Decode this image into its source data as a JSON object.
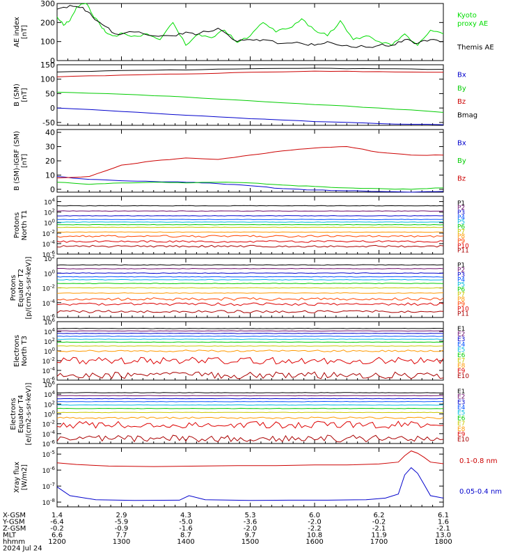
{
  "chart_data": {
    "type": "line",
    "time": {
      "label": "hhmm",
      "date": "2024 Jul 24",
      "ticks": [
        "1200",
        "1300",
        "1400",
        "1500",
        "1600",
        "1700",
        "1800"
      ],
      "xlim": [
        0,
        6
      ]
    },
    "ephemeris": [
      {
        "label": "X-GSM",
        "values": [
          "1.4",
          "2.9",
          "4.3",
          "5.3",
          "6.0",
          "6.2",
          "6.1"
        ]
      },
      {
        "label": "Y-GSM",
        "values": [
          "-6.4",
          "-5.9",
          "-5.0",
          "-3.6",
          "-2.0",
          "-0.2",
          "1.6"
        ]
      },
      {
        "label": "Z-GSM",
        "values": [
          "-0.2",
          "-0.9",
          "-1.6",
          "-2.0",
          "-2.2",
          "-2.1",
          "-2.1"
        ]
      },
      {
        "label": "MLT",
        "values": [
          "6.6",
          "7.7",
          "8.7",
          "9.7",
          "10.8",
          "11.9",
          "13.0"
        ]
      }
    ],
    "panels": [
      {
        "id": "ae",
        "ylabel": "AE index\n[nT]",
        "ylim": [
          0,
          300
        ],
        "yticks": [
          "0",
          "100",
          "200",
          "300"
        ],
        "series": [
          {
            "name": "Kyoto proxy AE",
            "color": "#00dd00",
            "x": [
              0,
              0.1,
              0.2,
              0.3,
              0.45,
              0.55,
              0.65,
              0.75,
              0.9,
              1.0,
              1.2,
              1.4,
              1.6,
              1.8,
              2.0,
              2.2,
              2.4,
              2.6,
              2.8,
              3.0,
              3.2,
              3.4,
              3.6,
              3.8,
              4.0,
              4.2,
              4.4,
              4.6,
              4.8,
              5.0,
              5.2,
              5.4,
              5.6,
              5.8,
              6.0
            ],
            "y": [
              230,
              185,
              210,
              280,
              300,
              240,
              200,
              150,
              130,
              145,
              130,
              140,
              110,
              200,
              80,
              140,
              120,
              160,
              95,
              130,
              200,
              150,
              170,
              220,
              160,
              130,
              210,
              110,
              130,
              100,
              80,
              140,
              80,
              160,
              140
            ]
          },
          {
            "name": "Themis AE",
            "color": "#000000",
            "x": [
              0,
              0.2,
              0.4,
              0.55,
              0.7,
              0.9,
              1.2,
              1.5,
              1.8,
              2.0,
              2.2,
              2.5,
              2.8,
              3.0,
              3.2,
              3.5,
              3.8,
              4.0,
              4.2,
              4.5,
              4.8,
              5.0,
              5.2,
              5.4,
              5.6,
              5.8,
              6.0
            ],
            "y": [
              270,
              290,
              280,
              230,
              190,
              140,
              150,
              130,
              130,
              150,
              140,
              170,
              100,
              110,
              110,
              90,
              90,
              80,
              100,
              80,
              70,
              80,
              80,
              110,
              90,
              110,
              100
            ]
          }
        ]
      },
      {
        "id": "bsm",
        "ylabel": "B (SM)\n[nT]",
        "ylim": [
          -60,
          150
        ],
        "yticks": [
          "-50",
          "0",
          "50",
          "100",
          "150"
        ],
        "series": [
          {
            "name": "Bx",
            "color": "#0000cc",
            "x": [
              0,
              1,
              2,
              3,
              4,
              5,
              6
            ],
            "y": [
              0,
              -12,
              -25,
              -37,
              -47,
              -54,
              -58
            ]
          },
          {
            "name": "By",
            "color": "#00cc00",
            "x": [
              0,
              1,
              2,
              3,
              4,
              5,
              6
            ],
            "y": [
              55,
              48,
              38,
              25,
              12,
              0,
              -15
            ]
          },
          {
            "name": "Bz",
            "color": "#cc0000",
            "x": [
              0,
              1,
              2,
              3,
              4,
              5,
              6
            ],
            "y": [
              108,
              114,
              118,
              124,
              128,
              126,
              124
            ]
          },
          {
            "name": "Bmag",
            "color": "#000000",
            "x": [
              0,
              1,
              2,
              3,
              4,
              5,
              6
            ],
            "y": [
              125,
              130,
              132,
              136,
              138,
              136,
              134
            ]
          }
        ]
      },
      {
        "id": "bigrf",
        "ylabel": "B (SM)-IGRF (SM)\n[nT]",
        "ylim": [
          -2,
          42
        ],
        "yticks": [
          "0",
          "10",
          "20",
          "30",
          "40"
        ],
        "series": [
          {
            "name": "Bx",
            "color": "#0000cc",
            "x": [
              0,
              0.5,
              1,
              1.5,
              2,
              2.5,
              3,
              3.5,
              4,
              4.5,
              5,
              5.5,
              6
            ],
            "y": [
              9,
              7,
              6,
              5.5,
              5,
              4,
              2.5,
              0.5,
              -0.5,
              -1,
              -1.5,
              -2,
              -1.5
            ]
          },
          {
            "name": "By",
            "color": "#00cc00",
            "x": [
              0,
              0.5,
              1,
              1.5,
              2,
              2.5,
              3,
              3.5,
              4,
              4.5,
              5,
              5.5,
              6
            ],
            "y": [
              5,
              3.5,
              4.5,
              5,
              4.5,
              5,
              4.5,
              3,
              2,
              1,
              0.5,
              0,
              1
            ]
          },
          {
            "name": "Bz",
            "color": "#cc0000",
            "x": [
              0,
              0.5,
              1,
              1.5,
              2,
              2.5,
              3,
              3.5,
              4,
              4.5,
              5,
              5.5,
              6
            ],
            "y": [
              8,
              9,
              17,
              20,
              22,
              21,
              24,
              27,
              29,
              30,
              26,
              24,
              24
            ]
          }
        ]
      },
      {
        "id": "pt1",
        "ylabel": "Protons\nNorth T1",
        "ylim": [
          -6,
          5
        ],
        "log": true,
        "yticks": [
          "10^-6",
          "10^-4",
          "10^-2",
          "10^0",
          "10^2",
          "10^4"
        ],
        "series": [
          {
            "name": "P1",
            "color": "#000000",
            "level": 3.2
          },
          {
            "name": "P2",
            "color": "#6a0a6a",
            "level": 2.2
          },
          {
            "name": "P3",
            "color": "#0000cc",
            "level": 1.3
          },
          {
            "name": "P4",
            "color": "#0050ff",
            "level": 0.6
          },
          {
            "name": "P5",
            "color": "#00b8e0",
            "level": 0.1
          },
          {
            "name": "P6",
            "color": "#00cc00",
            "level": -0.4
          },
          {
            "name": "P7",
            "color": "#c8c800",
            "level": -0.9
          },
          {
            "name": "P8",
            "color": "#ff9900",
            "level": -1.8
          },
          {
            "name": "P9",
            "color": "#ff4400",
            "level": -2.6
          },
          {
            "name": "P10",
            "color": "#dd0000",
            "level": -3.6
          },
          {
            "name": "P11",
            "color": "#aa0000",
            "level": -4.5
          }
        ]
      },
      {
        "id": "pt2",
        "ylabel": "Protons\nEquator T2\n[p/(cm2-s-sr-keV)]",
        "ylim": [
          -6,
          2
        ],
        "log": true,
        "yticks": [
          "10^-6",
          "10^-4",
          "10^-2",
          "10^0",
          "10^2"
        ],
        "series": [
          {
            "name": "P1",
            "color": "#000000",
            "level": 1.1
          },
          {
            "name": "P2",
            "color": "#6a0a6a",
            "level": 0.6
          },
          {
            "name": "P3",
            "color": "#0000cc",
            "level": 0.0
          },
          {
            "name": "P4",
            "color": "#0050ff",
            "level": -0.5
          },
          {
            "name": "P5",
            "color": "#00b8e0",
            "level": -0.9
          },
          {
            "name": "P6",
            "color": "#00cc00",
            "level": -1.4
          },
          {
            "name": "P7",
            "color": "#c8c800",
            "level": -2.0
          },
          {
            "name": "P8",
            "color": "#ff9900",
            "level": -2.7
          },
          {
            "name": "P9",
            "color": "#ff4400",
            "level": -3.5
          },
          {
            "name": "P10",
            "color": "#dd0000",
            "level": -4.2
          },
          {
            "name": "P11",
            "color": "#aa0000",
            "level": -5.2
          }
        ]
      },
      {
        "id": "et3",
        "ylabel": "Electrons\nNorth T3",
        "ylim": [
          -6,
          6
        ],
        "log": true,
        "yticks": [
          "10^-6",
          "10^-4",
          "10^-2",
          "10^0",
          "10^2",
          "10^4",
          "10^6"
        ],
        "series": [
          {
            "name": "E1",
            "color": "#000000",
            "level": 4.6
          },
          {
            "name": "E2",
            "color": "#6a0a6a",
            "level": 4.1
          },
          {
            "name": "E3",
            "color": "#0000cc",
            "level": 3.6
          },
          {
            "name": "E4",
            "color": "#0050ff",
            "level": 3.0
          },
          {
            "name": "E5",
            "color": "#00b8e0",
            "level": 2.4
          },
          {
            "name": "E6",
            "color": "#00cc00",
            "level": 1.8
          },
          {
            "name": "E7",
            "color": "#c8c800",
            "level": 1.0
          },
          {
            "name": "E8",
            "color": "#ff9900",
            "level": 0.0
          },
          {
            "name": "E9",
            "color": "#dd0000",
            "level": -2.0
          },
          {
            "name": "E10",
            "color": "#aa0000",
            "level": -5.0
          }
        ]
      },
      {
        "id": "et4",
        "ylabel": "Electrons\nEquator T4\n[e/(cm2-s-sr-keV)]",
        "ylim": [
          -6,
          6
        ],
        "log": true,
        "yticks": [
          "10^-6",
          "10^-4",
          "10^-2",
          "10^0",
          "10^2",
          "10^4",
          "10^6"
        ],
        "series": [
          {
            "name": "E1",
            "color": "#000000",
            "level": 4.3
          },
          {
            "name": "E2",
            "color": "#6a0a6a",
            "level": 3.7
          },
          {
            "name": "E3",
            "color": "#0000cc",
            "level": 3.1
          },
          {
            "name": "E4",
            "color": "#0050ff",
            "level": 2.5
          },
          {
            "name": "E5",
            "color": "#00b8e0",
            "level": 1.8
          },
          {
            "name": "E6",
            "color": "#00cc00",
            "level": 1.1
          },
          {
            "name": "E7",
            "color": "#c8c800",
            "level": 0.3
          },
          {
            "name": "E8",
            "color": "#ff9900",
            "level": -0.8
          },
          {
            "name": "E9",
            "color": "#dd0000",
            "level": -2.2
          },
          {
            "name": "E10",
            "color": "#aa0000",
            "level": -5.0
          }
        ]
      },
      {
        "id": "xray",
        "ylabel": "Xray flux\n[W/m2]",
        "ylim": [
          -8.3,
          -4.6
        ],
        "log": true,
        "yticks": [
          "10^-8",
          "10^-7",
          "10^-6",
          "10^-5"
        ],
        "series": [
          {
            "name": "0.1-0.8 nm",
            "color": "#cc0000",
            "x": [
              0,
              0.3,
              0.8,
              1.5,
              2.2,
              2.8,
              3.4,
              4.0,
              4.5,
              5.0,
              5.3,
              5.4,
              5.5,
              5.6,
              5.7,
              5.8,
              6.0
            ],
            "y": [
              -5.55,
              -5.65,
              -5.75,
              -5.78,
              -5.75,
              -5.72,
              -5.72,
              -5.68,
              -5.68,
              -5.62,
              -5.5,
              -5.1,
              -4.8,
              -4.95,
              -5.2,
              -5.5,
              -5.6
            ]
          },
          {
            "name": "0.05-0.4 nm",
            "color": "#0000cc",
            "x": [
              0,
              0.2,
              0.6,
              1.2,
              1.9,
              2.05,
              2.3,
              3.0,
              3.6,
              4.2,
              4.8,
              5.1,
              5.3,
              5.4,
              5.5,
              5.6,
              5.7,
              5.8,
              6.0
            ],
            "y": [
              -7.05,
              -7.6,
              -7.85,
              -7.9,
              -7.88,
              -7.6,
              -7.85,
              -7.9,
              -7.88,
              -7.88,
              -7.85,
              -7.75,
              -7.5,
              -6.3,
              -5.85,
              -6.2,
              -6.9,
              -7.6,
              -7.75
            ]
          }
        ]
      }
    ]
  }
}
